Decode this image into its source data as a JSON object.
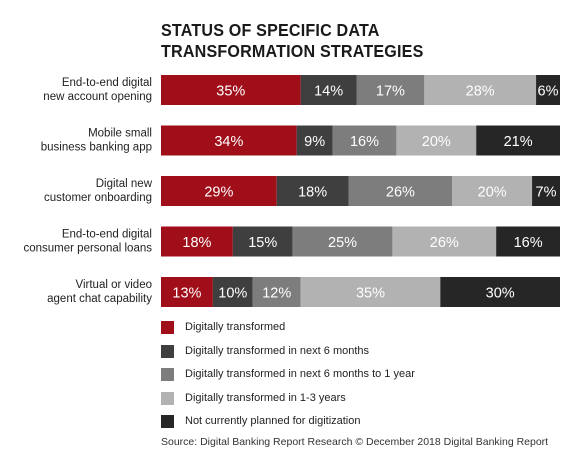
{
  "chart_data": {
    "type": "bar",
    "orientation": "horizontal",
    "stacked": true,
    "title": "STATUS OF SPECIFIC DATA TRANSFORMATION STRATEGIES",
    "categories": [
      "End-to-end digital new account opening",
      "Mobile small business banking app",
      "Digital new customer onboarding",
      "End-to-end digital consumer personal loans",
      "Virtual or video agent chat capability"
    ],
    "category_lines": [
      [
        "End-to-end digital",
        "new account opening"
      ],
      [
        "Mobile small",
        "business banking app"
      ],
      [
        "Digital new",
        "customer onboarding"
      ],
      [
        "End-to-end digital",
        "consumer personal loans"
      ],
      [
        "Virtual or video",
        "agent chat capability"
      ]
    ],
    "series": [
      {
        "name": "Digitally transformed",
        "color": "#a00e1a",
        "values": [
          35,
          34,
          29,
          18,
          13
        ]
      },
      {
        "name": "Digitally transformed in next 6 months",
        "color": "#3f3f3f",
        "values": [
          14,
          9,
          18,
          15,
          10
        ]
      },
      {
        "name": "Digitally transformed in next 6 months to 1 year",
        "color": "#7d7d7d",
        "values": [
          17,
          16,
          26,
          25,
          12
        ]
      },
      {
        "name": "Digitally transformed in 1-3 years",
        "color": "#b2b2b2",
        "values": [
          28,
          20,
          20,
          26,
          35
        ]
      },
      {
        "name": "Not currently planned for digitization",
        "color": "#262626",
        "values": [
          6,
          21,
          7,
          16,
          30
        ]
      }
    ],
    "value_suffix": "%",
    "xlim": [
      0,
      100
    ],
    "legend_position": "bottom",
    "grid": false
  },
  "source": "Source: Digital Banking Report Research © December 2018 Digital Banking Report"
}
